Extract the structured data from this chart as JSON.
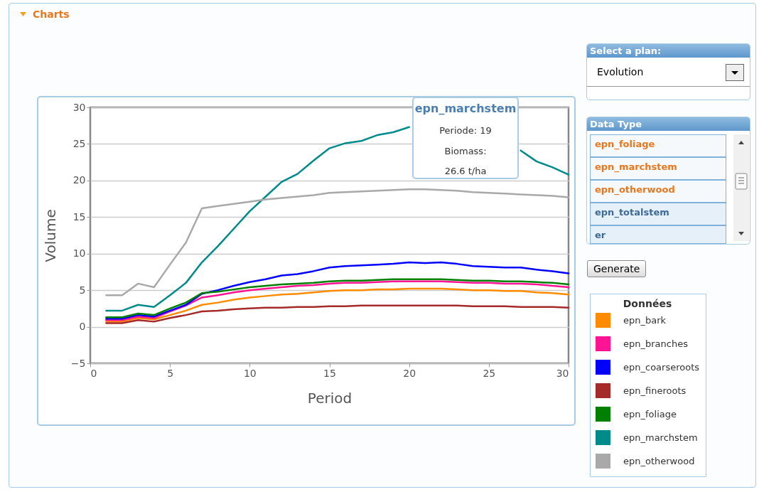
{
  "chart_data": [
    {
      "type": "line",
      "xlabel": "Period",
      "ylabel": "Volume",
      "legend_title": "Données",
      "legend": "right",
      "grid": "y",
      "xlim": [
        0,
        30
      ],
      "xticks": [
        0,
        5,
        10,
        15,
        20,
        25,
        30
      ],
      "ylim": [
        -5,
        30
      ],
      "yticks": [
        -5,
        0,
        5,
        10,
        15,
        20,
        25,
        30
      ],
      "x": [
        1,
        2,
        3,
        4,
        5,
        6,
        7,
        8,
        9,
        10,
        11,
        12,
        13,
        14,
        15,
        16,
        17,
        18,
        19,
        20,
        21,
        22,
        23,
        24,
        25,
        26,
        27,
        28,
        29,
        30
      ],
      "series": [
        {
          "name": "epn_bark",
          "color": "#ff8c00",
          "values": [
            0.7,
            0.7,
            1.2,
            1.0,
            1.6,
            2.2,
            3.0,
            3.3,
            3.7,
            4.0,
            4.2,
            4.4,
            4.5,
            4.7,
            4.9,
            5.0,
            5.0,
            5.1,
            5.1,
            5.2,
            5.2,
            5.2,
            5.1,
            5.0,
            5.0,
            4.9,
            4.9,
            4.7,
            4.6,
            4.4
          ]
        },
        {
          "name": "epn_branches",
          "color": "#ff1493",
          "values": [
            0.9,
            0.9,
            1.4,
            1.2,
            2.1,
            2.9,
            4.0,
            4.3,
            4.7,
            5.0,
            5.2,
            5.4,
            5.6,
            5.7,
            5.9,
            6.0,
            6.0,
            6.1,
            6.2,
            6.2,
            6.2,
            6.2,
            6.1,
            6.0,
            6.0,
            5.9,
            5.9,
            5.8,
            5.6,
            5.4
          ]
        },
        {
          "name": "epn_coarseroots",
          "color": "#0000ff",
          "values": [
            1.1,
            1.1,
            1.6,
            1.4,
            2.2,
            3.0,
            4.5,
            5.0,
            5.6,
            6.1,
            6.5,
            7.0,
            7.2,
            7.6,
            8.1,
            8.3,
            8.4,
            8.5,
            8.6,
            8.8,
            8.7,
            8.8,
            8.6,
            8.3,
            8.2,
            8.1,
            8.1,
            7.8,
            7.6,
            7.3
          ]
        },
        {
          "name": "epn_fineroots",
          "color": "#a52a2a",
          "values": [
            0.5,
            0.5,
            0.9,
            0.7,
            1.2,
            1.6,
            2.1,
            2.2,
            2.4,
            2.5,
            2.6,
            2.6,
            2.7,
            2.7,
            2.8,
            2.8,
            2.9,
            2.9,
            2.9,
            2.9,
            2.9,
            2.9,
            2.9,
            2.8,
            2.8,
            2.8,
            2.7,
            2.7,
            2.7,
            2.6
          ]
        },
        {
          "name": "epn_foliage",
          "color": "#008000",
          "values": [
            1.3,
            1.3,
            1.8,
            1.6,
            2.5,
            3.3,
            4.6,
            4.8,
            5.1,
            5.4,
            5.6,
            5.8,
            5.9,
            6.0,
            6.2,
            6.3,
            6.3,
            6.4,
            6.5,
            6.5,
            6.5,
            6.5,
            6.4,
            6.3,
            6.3,
            6.2,
            6.2,
            6.1,
            6.0,
            5.8
          ]
        },
        {
          "name": "epn_marchstem",
          "color": "#008b8b",
          "values": [
            2.2,
            2.2,
            3.0,
            2.7,
            4.3,
            6.0,
            8.8,
            11.0,
            13.4,
            15.8,
            17.8,
            19.8,
            20.9,
            22.7,
            24.4,
            25.1,
            25.4,
            26.2,
            26.6,
            27.3,
            null,
            null,
            null,
            null,
            null,
            null,
            24.1,
            22.6,
            21.8,
            20.8
          ]
        },
        {
          "name": "epn_otherwood",
          "color": "#a9a9a9",
          "values": [
            4.3,
            4.3,
            5.9,
            5.4,
            8.5,
            11.5,
            16.2,
            16.5,
            16.8,
            17.1,
            17.4,
            17.6,
            17.8,
            18.0,
            18.3,
            18.4,
            18.5,
            18.6,
            18.7,
            18.8,
            18.8,
            18.7,
            18.6,
            18.4,
            18.3,
            18.2,
            18.1,
            18.0,
            17.9,
            17.7
          ]
        }
      ],
      "annotations": [
        "epn_marchstem",
        "Periode: 19",
        "Biomass:",
        "26.6 t/ha"
      ]
    },
    {
      "type": "other",
      "annotations": [
        "Charts",
        "Select a plan:",
        "Evolution",
        "Data Type",
        "epn_foliage",
        "epn_marchstem",
        "epn_otherwood",
        "epn_totalstem",
        "er",
        "Generate"
      ]
    }
  ]
}
